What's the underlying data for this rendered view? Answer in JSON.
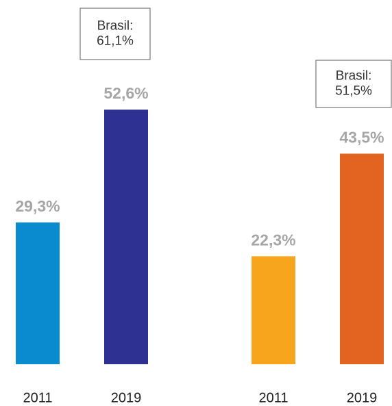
{
  "chart_data": {
    "type": "bar",
    "categories": [
      "2011",
      "2019",
      "2011",
      "2019"
    ],
    "values": [
      29.3,
      52.6,
      22.3,
      43.5
    ],
    "value_labels": [
      "29,3%",
      "52,6%",
      "22,3%",
      "43,5%"
    ],
    "colors": [
      "#0a8bd0",
      "#2e3192",
      "#f7a51d",
      "#e36321"
    ],
    "annotations": [
      {
        "lines": [
          "Brasil:",
          "61,1%"
        ]
      },
      {
        "lines": [
          "Brasil:",
          "51,5%"
        ]
      }
    ]
  }
}
